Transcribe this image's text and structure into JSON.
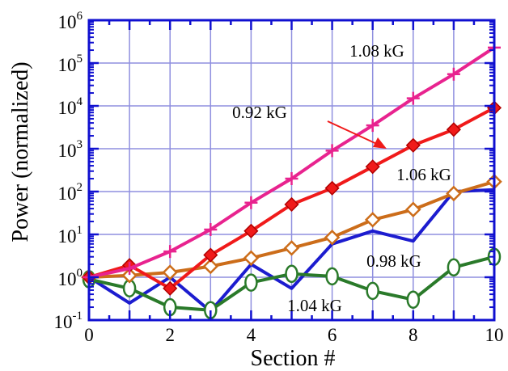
{
  "chart_data": {
    "type": "line",
    "title": "",
    "xlabel": "Section #",
    "ylabel": "Power (normalized)",
    "xlim": [
      0,
      10
    ],
    "ylim": [
      0.1,
      1000000
    ],
    "yscale": "log",
    "grid": true,
    "x_ticks": [
      0,
      2,
      4,
      6,
      8,
      10
    ],
    "x_tick_labels": [
      "0",
      "2",
      "4",
      "6",
      "8",
      "10"
    ],
    "y_ticks": [
      {
        "value": 0.1,
        "base": "10",
        "exp": "-1"
      },
      {
        "value": 1,
        "base": "10",
        "exp": "0"
      },
      {
        "value": 10,
        "base": "10",
        "exp": "1"
      },
      {
        "value": 100,
        "base": "10",
        "exp": "2"
      },
      {
        "value": 1000,
        "base": "10",
        "exp": "3"
      },
      {
        "value": 10000,
        "base": "10",
        "exp": "4"
      },
      {
        "value": 100000,
        "base": "10",
        "exp": "5"
      },
      {
        "value": 1000000,
        "base": "10",
        "exp": "6"
      }
    ],
    "series": [
      {
        "name": "1.08 kG",
        "color": "#e8238f",
        "marker": "plus",
        "x": [
          0,
          1,
          2,
          3,
          4,
          5,
          6,
          7,
          8,
          9,
          10
        ],
        "y": [
          1.0,
          1.6,
          4.0,
          13,
          55,
          200,
          900,
          3500,
          15000,
          55000,
          230000
        ]
      },
      {
        "name": "0.92 kG",
        "color": "#f01a1a",
        "marker": "diamond-filled",
        "x": [
          0,
          1,
          2,
          3,
          4,
          5,
          6,
          7,
          8,
          9,
          10
        ],
        "y": [
          1.0,
          1.9,
          0.55,
          3.3,
          12,
          50,
          120,
          380,
          1200,
          2800,
          9000
        ]
      },
      {
        "name": "1.06 kG",
        "color": "#cc6d1a",
        "marker": "diamond-open",
        "x": [
          0,
          1,
          2,
          3,
          4,
          5,
          6,
          7,
          8,
          9,
          10
        ],
        "y": [
          1.0,
          1.1,
          1.3,
          1.8,
          2.8,
          4.8,
          8.5,
          22,
          38,
          90,
          170
        ]
      },
      {
        "name": "0.98 kG",
        "color": "#1c1ccf",
        "marker": "none",
        "x": [
          0,
          1,
          2,
          3,
          4,
          5,
          6,
          7,
          8,
          9,
          10
        ],
        "y": [
          1.0,
          0.25,
          1.0,
          0.16,
          2.0,
          0.55,
          6.0,
          12,
          7.0,
          100,
          110
        ]
      },
      {
        "name": "1.04 kG",
        "color": "#2a7a2a",
        "marker": "circle-open",
        "x": [
          0,
          1,
          2,
          3,
          4,
          5,
          6,
          7,
          8,
          9,
          10
        ],
        "y": [
          0.9,
          0.55,
          0.2,
          0.17,
          0.75,
          1.2,
          1.05,
          0.48,
          0.3,
          1.7,
          3.0
        ]
      }
    ],
    "annotations": [
      {
        "text": "1.08 kG",
        "color": "#e8238f"
      },
      {
        "text": "0.92 kG",
        "color": "#f01a1a"
      },
      {
        "text": "1.06 kG",
        "color": "#cc6d1a"
      },
      {
        "text": "0.98 kG",
        "color": "#1c1ccf"
      },
      {
        "text": "1.04 kG",
        "color": "#2a7a2a"
      }
    ],
    "colors": {
      "frame": "#1010d0",
      "grid": "#8f8fdf"
    }
  }
}
